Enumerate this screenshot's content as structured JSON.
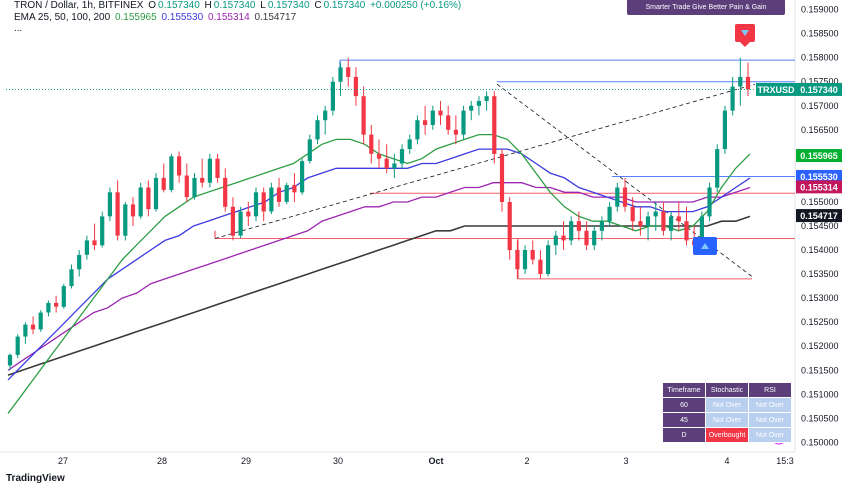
{
  "header": {
    "symbol_line": "TRON / Dollar, 1h, BITFINEX",
    "o_label": "O",
    "o_value": "0.157340",
    "h_label": "H",
    "h_value": "0.157340",
    "l_label": "L",
    "l_value": "0.157340",
    "c_label": "C",
    "c_value": "0.157340",
    "change": "+0.000250 (+0.16%)",
    "ema_label": "EMA 25, 50, 100, 200",
    "ema_values": [
      "0.155965",
      "0.155530",
      "0.155314",
      "0.154717"
    ],
    "more": "..."
  },
  "banner": "Smarter Trade Give Better Pain & Gain",
  "symbol_tag": "TRXUSD",
  "colors": {
    "up": "#089981",
    "down": "#f23645",
    "ema25": "#2e9e45",
    "ema50": "#3c3ce0",
    "ema100": "#9c27b0",
    "ema200": "#3a3a3a",
    "level_blue": "#2962ff",
    "level_red": "#f23645",
    "purple": "#5b3e7a"
  },
  "indicator_table": {
    "headers": [
      "Timeframe",
      "Stochastic",
      "RSI"
    ],
    "rows": [
      {
        "tf": "60",
        "stoch": "Not Over",
        "rsi": "Not Over",
        "stoch_state": "normal",
        "rsi_state": "normal"
      },
      {
        "tf": "45",
        "stoch": "Not Over",
        "rsi": "Not Over",
        "stoch_state": "normal",
        "rsi_state": "normal"
      },
      {
        "tf": "D",
        "stoch": "Overbought",
        "rsi": "Not Over",
        "stoch_state": "overbought",
        "rsi_state": "normal"
      }
    ]
  },
  "chart_data": {
    "type": "candlestick",
    "x_ticks": [
      "27",
      "28",
      "29",
      "30",
      "Oct",
      "2",
      "3",
      "4",
      "15:3"
    ],
    "y_ticks": [
      "0.159000",
      "0.158500",
      "0.158000",
      "0.157500",
      "0.157000",
      "0.156500",
      "0.156000",
      "0.155500",
      "0.155000",
      "0.154500",
      "0.154000",
      "0.153500",
      "0.153000",
      "0.152500",
      "0.152000",
      "0.151500",
      "0.151000",
      "0.150500",
      "0.150000"
    ],
    "ylim": [
      0.1498,
      0.1592
    ],
    "last_price": 0.15734,
    "ema_labels": [
      {
        "name": "EMA 25",
        "value": "0.155965",
        "color": "#00b02e"
      },
      {
        "name": "EMA 50",
        "value": "0.155530",
        "color": "#2962ff"
      },
      {
        "name": "EMA 100",
        "value": "0.155314",
        "color": "#c2185b"
      },
      {
        "name": "EMA 200",
        "value": "0.154717",
        "color": "#131722"
      }
    ],
    "candles": [
      [
        0.1516,
        0.15185,
        0.1515,
        0.15182
      ],
      [
        0.15182,
        0.15225,
        0.15175,
        0.1522
      ],
      [
        0.1522,
        0.1525,
        0.15205,
        0.15245
      ],
      [
        0.15245,
        0.15262,
        0.15225,
        0.15235
      ],
      [
        0.15235,
        0.15275,
        0.1523,
        0.1527
      ],
      [
        0.1527,
        0.15295,
        0.15262,
        0.1529
      ],
      [
        0.1529,
        0.15305,
        0.1527,
        0.15282
      ],
      [
        0.15282,
        0.1533,
        0.15278,
        0.15325
      ],
      [
        0.15325,
        0.1537,
        0.1532,
        0.1536
      ],
      [
        0.1536,
        0.154,
        0.15345,
        0.1539
      ],
      [
        0.1539,
        0.1543,
        0.1538,
        0.1542
      ],
      [
        0.1542,
        0.15455,
        0.154,
        0.1541
      ],
      [
        0.1541,
        0.1548,
        0.15405,
        0.1547
      ],
      [
        0.1547,
        0.1553,
        0.1546,
        0.1552
      ],
      [
        0.1552,
        0.15545,
        0.1542,
        0.1543
      ],
      [
        0.1543,
        0.155,
        0.1542,
        0.15495
      ],
      [
        0.15495,
        0.1551,
        0.1545,
        0.1547
      ],
      [
        0.1547,
        0.1554,
        0.15465,
        0.1553
      ],
      [
        0.1553,
        0.15545,
        0.1547,
        0.15485
      ],
      [
        0.15485,
        0.1556,
        0.1548,
        0.1555
      ],
      [
        0.1555,
        0.1558,
        0.1552,
        0.15525
      ],
      [
        0.15525,
        0.156,
        0.1552,
        0.15595
      ],
      [
        0.15595,
        0.15605,
        0.1554,
        0.15555
      ],
      [
        0.15555,
        0.1558,
        0.155,
        0.1551
      ],
      [
        0.1551,
        0.1556,
        0.15505,
        0.1555
      ],
      [
        0.1555,
        0.1559,
        0.1553,
        0.1554
      ],
      [
        0.1554,
        0.156,
        0.1553,
        0.1559
      ],
      [
        0.1559,
        0.156,
        0.1554,
        0.1555
      ],
      [
        0.1555,
        0.1557,
        0.1548,
        0.1549
      ],
      [
        0.1549,
        0.1551,
        0.1542,
        0.1543
      ],
      [
        0.1543,
        0.1549,
        0.15425,
        0.1548
      ],
      [
        0.1548,
        0.155,
        0.1545,
        0.1547
      ],
      [
        0.1547,
        0.1553,
        0.1546,
        0.1552
      ],
      [
        0.1552,
        0.1553,
        0.1546,
        0.1548
      ],
      [
        0.1548,
        0.1554,
        0.15475,
        0.1553
      ],
      [
        0.1553,
        0.1555,
        0.1549,
        0.155
      ],
      [
        0.155,
        0.1554,
        0.15495,
        0.15535
      ],
      [
        0.15535,
        0.1556,
        0.155,
        0.1552
      ],
      [
        0.1552,
        0.1559,
        0.15515,
        0.15585
      ],
      [
        0.15585,
        0.1564,
        0.1558,
        0.1563
      ],
      [
        0.1563,
        0.1568,
        0.1562,
        0.1567
      ],
      [
        0.1567,
        0.157,
        0.1564,
        0.1569
      ],
      [
        0.1569,
        0.1576,
        0.1568,
        0.1575
      ],
      [
        0.1575,
        0.1579,
        0.1572,
        0.1578
      ],
      [
        0.1578,
        0.158,
        0.1574,
        0.1576
      ],
      [
        0.1576,
        0.1578,
        0.157,
        0.1572
      ],
      [
        0.1572,
        0.1574,
        0.1562,
        0.1564
      ],
      [
        0.1564,
        0.1566,
        0.1558,
        0.156
      ],
      [
        0.156,
        0.1563,
        0.1557,
        0.1559
      ],
      [
        0.1559,
        0.1562,
        0.1556,
        0.1557
      ],
      [
        0.1557,
        0.156,
        0.1555,
        0.1558
      ],
      [
        0.1558,
        0.1562,
        0.1557,
        0.1561
      ],
      [
        0.1561,
        0.1564,
        0.156,
        0.1563
      ],
      [
        0.1563,
        0.1568,
        0.1562,
        0.1567
      ],
      [
        0.1567,
        0.157,
        0.1564,
        0.1566
      ],
      [
        0.1566,
        0.157,
        0.1565,
        0.1569
      ],
      [
        0.1569,
        0.1571,
        0.1566,
        0.1568
      ],
      [
        0.1568,
        0.157,
        0.1564,
        0.1565
      ],
      [
        0.1565,
        0.1568,
        0.1562,
        0.1564
      ],
      [
        0.1564,
        0.157,
        0.1563,
        0.1569
      ],
      [
        0.1569,
        0.1571,
        0.1567,
        0.157
      ],
      [
        0.157,
        0.1572,
        0.1568,
        0.1571
      ],
      [
        0.1571,
        0.1573,
        0.1569,
        0.1572
      ],
      [
        0.1572,
        0.1573,
        0.1558,
        0.156
      ],
      [
        0.156,
        0.1561,
        0.1548,
        0.155
      ],
      [
        0.155,
        0.1551,
        0.1538,
        0.154
      ],
      [
        0.154,
        0.1542,
        0.1534,
        0.1536
      ],
      [
        0.1536,
        0.1541,
        0.1535,
        0.154
      ],
      [
        0.154,
        0.1542,
        0.1537,
        0.1538
      ],
      [
        0.1538,
        0.154,
        0.1534,
        0.1535
      ],
      [
        0.1535,
        0.1542,
        0.15345,
        0.1541
      ],
      [
        0.1541,
        0.1544,
        0.1539,
        0.1543
      ],
      [
        0.1543,
        0.1546,
        0.154,
        0.1542
      ],
      [
        0.1542,
        0.1547,
        0.1541,
        0.1546
      ],
      [
        0.1546,
        0.1548,
        0.1542,
        0.1544
      ],
      [
        0.1544,
        0.1546,
        0.154,
        0.1541
      ],
      [
        0.1541,
        0.1545,
        0.154,
        0.1544
      ],
      [
        0.1544,
        0.1547,
        0.1542,
        0.1546
      ],
      [
        0.1546,
        0.155,
        0.1545,
        0.1549
      ],
      [
        0.1549,
        0.1554,
        0.1548,
        0.1553
      ],
      [
        0.1553,
        0.1555,
        0.1548,
        0.1549
      ],
      [
        0.1549,
        0.1551,
        0.1544,
        0.1546
      ],
      [
        0.1546,
        0.1549,
        0.1543,
        0.1545
      ],
      [
        0.1545,
        0.1548,
        0.1542,
        0.1547
      ],
      [
        0.1547,
        0.155,
        0.1544,
        0.1548
      ],
      [
        0.1548,
        0.155,
        0.1543,
        0.1544
      ],
      [
        0.1544,
        0.1548,
        0.1542,
        0.1547
      ],
      [
        0.1547,
        0.155,
        0.1544,
        0.1546
      ],
      [
        0.1546,
        0.1549,
        0.1541,
        0.1542
      ],
      [
        0.1542,
        0.1545,
        0.1539,
        0.1541
      ],
      [
        0.1541,
        0.1548,
        0.15405,
        0.1547
      ],
      [
        0.1547,
        0.1554,
        0.1546,
        0.1553
      ],
      [
        0.1553,
        0.1562,
        0.1552,
        0.1561
      ],
      [
        0.1561,
        0.157,
        0.156,
        0.1569
      ],
      [
        0.1569,
        0.1576,
        0.1568,
        0.1574
      ],
      [
        0.1574,
        0.158,
        0.157,
        0.1576
      ],
      [
        0.1576,
        0.1579,
        0.1572,
        0.15734
      ]
    ],
    "levels": [
      {
        "name": "high-level",
        "value": 0.15795,
        "color": "#2962ff"
      },
      {
        "name": "price-level",
        "value": 0.1575,
        "color": "#2962ff"
      },
      {
        "name": "mid-level",
        "value": 0.15553,
        "color": "#2962ff"
      },
      {
        "name": "resist-level",
        "value": 0.15518,
        "color": "#f23645"
      },
      {
        "name": "support-level",
        "value": 0.15424,
        "color": "#f23645"
      },
      {
        "name": "low-level",
        "value": 0.1534,
        "color": "#f23645"
      }
    ],
    "ema_series": {
      "ema25": [
        0.1506,
        0.151,
        0.1514,
        0.1518,
        0.1522,
        0.1526,
        0.153,
        0.1534,
        0.1538,
        0.1541,
        0.1544,
        0.1547,
        0.1549,
        0.1551,
        0.1552,
        0.1553,
        0.1554,
        0.1555,
        0.1556,
        0.1557,
        0.1558,
        0.156,
        0.1562,
        0.1563,
        0.1563,
        0.1562,
        0.156,
        0.1559,
        0.1558,
        0.1559,
        0.1561,
        0.1562,
        0.1563,
        0.1564,
        0.1564,
        0.1563,
        0.156,
        0.1556,
        0.1552,
        0.1549,
        0.1547,
        0.1546,
        0.1546,
        0.1545,
        0.1544,
        0.1545,
        0.1545,
        0.1544,
        0.1545,
        0.1548,
        0.1553,
        0.1557,
        0.156
      ],
      "ema50": [
        0.1513,
        0.1516,
        0.1519,
        0.1522,
        0.1525,
        0.1528,
        0.1531,
        0.1534,
        0.1536,
        0.1538,
        0.154,
        0.1542,
        0.1543,
        0.1545,
        0.1546,
        0.1547,
        0.1548,
        0.1549,
        0.155,
        0.1552,
        0.1553,
        0.1555,
        0.1556,
        0.1557,
        0.1557,
        0.1557,
        0.1557,
        0.1557,
        0.1557,
        0.1558,
        0.1558,
        0.1559,
        0.156,
        0.1561,
        0.1561,
        0.1561,
        0.156,
        0.1558,
        0.1556,
        0.1555,
        0.1553,
        0.1552,
        0.1551,
        0.155,
        0.1549,
        0.1549,
        0.1548,
        0.1548,
        0.1548,
        0.1549,
        0.1551,
        0.1553,
        0.1555
      ],
      "ema100": [
        0.1515,
        0.1517,
        0.1519,
        0.1521,
        0.1523,
        0.1525,
        0.1527,
        0.1528,
        0.153,
        0.1531,
        0.1533,
        0.1534,
        0.1535,
        0.1536,
        0.1537,
        0.1538,
        0.1539,
        0.154,
        0.1541,
        0.1542,
        0.1543,
        0.1544,
        0.1546,
        0.1547,
        0.1548,
        0.1549,
        0.1549,
        0.155,
        0.155,
        0.1551,
        0.1551,
        0.1552,
        0.1553,
        0.1553,
        0.1554,
        0.1554,
        0.1554,
        0.1553,
        0.1553,
        0.1552,
        0.1552,
        0.1551,
        0.1551,
        0.1551,
        0.155,
        0.155,
        0.155,
        0.155,
        0.155,
        0.1551,
        0.1551,
        0.1552,
        0.1553
      ],
      "ema200": [
        0.1514,
        0.1515,
        0.1516,
        0.1517,
        0.1518,
        0.1519,
        0.152,
        0.1521,
        0.1522,
        0.1523,
        0.1524,
        0.1525,
        0.1526,
        0.1527,
        0.1528,
        0.1529,
        0.153,
        0.1531,
        0.1532,
        0.1533,
        0.1534,
        0.1535,
        0.1536,
        0.1537,
        0.1538,
        0.1539,
        0.154,
        0.1541,
        0.1542,
        0.1543,
        0.1544,
        0.1544,
        0.1545,
        0.1545,
        0.1545,
        0.1545,
        0.1545,
        0.1545,
        0.1545,
        0.1545,
        0.1545,
        0.1545,
        0.1545,
        0.1545,
        0.1545,
        0.1545,
        0.1545,
        0.1545,
        0.1545,
        0.1545,
        0.1546,
        0.1546,
        0.1547
      ]
    }
  },
  "footer": {
    "brand": "TradingView"
  }
}
